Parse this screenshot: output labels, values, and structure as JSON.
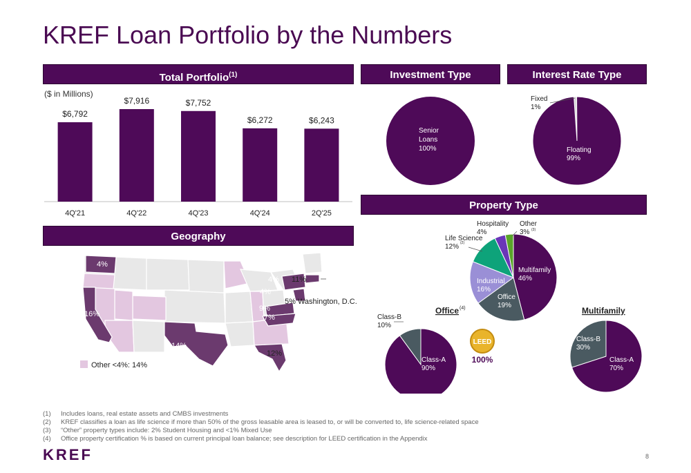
{
  "title": "KREF Loan Portfolio by the Numbers",
  "headers": {
    "total_portfolio": "Total Portfolio",
    "total_portfolio_note": "(1)",
    "investment_type": "Investment Type",
    "interest_rate_type": "Interest Rate Type",
    "property_type": "Property Type",
    "geography": "Geography"
  },
  "colors": {
    "purple": "#4e0a58",
    "slate": "#4a5a61",
    "lavender": "#9a8fd6",
    "teal": "#0ea37a",
    "violet": "#6a36b8",
    "green": "#5aa52a",
    "light_pink": "#e3c7e0",
    "dark_map": "#6b3a6e",
    "gold": "#e9b42b"
  },
  "chart_data": [
    {
      "type": "bar",
      "id": "total_portfolio",
      "unit_label": "($ in Millions)",
      "categories": [
        "4Q'21",
        "4Q'22",
        "4Q'23",
        "4Q'24",
        "2Q'25"
      ],
      "values": [
        6792,
        7916,
        7752,
        6272,
        6243
      ],
      "value_labels": [
        "$6,792",
        "$7,916",
        "$7,752",
        "$6,272",
        "$6,243"
      ],
      "ylim": [
        0,
        7916
      ]
    },
    {
      "type": "pie",
      "id": "investment_type",
      "slices": [
        {
          "label": "Senior Loans",
          "value": 100,
          "pct": "100%"
        }
      ]
    },
    {
      "type": "pie",
      "id": "interest_rate_type",
      "slices": [
        {
          "label": "Floating",
          "value": 99,
          "pct": "99%"
        },
        {
          "label": "Fixed",
          "value": 1,
          "pct": "1%"
        }
      ]
    },
    {
      "type": "pie",
      "id": "property_type",
      "slices": [
        {
          "label": "Multifamily",
          "value": 46,
          "pct": "46%",
          "note": ""
        },
        {
          "label": "Office",
          "value": 19,
          "pct": "19%",
          "note": ""
        },
        {
          "label": "Industrial",
          "value": 16,
          "pct": "16%",
          "note": ""
        },
        {
          "label": "Life Science",
          "value": 12,
          "pct": "12%",
          "note": "(2)"
        },
        {
          "label": "Hospitality",
          "value": 4,
          "pct": "4%",
          "note": ""
        },
        {
          "label": "Other",
          "value": 3,
          "pct": "3%",
          "note": "(3)"
        }
      ]
    },
    {
      "type": "pie",
      "id": "office",
      "title": "Office",
      "title_note": "(4)",
      "slices": [
        {
          "label": "Class-A",
          "value": 90,
          "pct": "90%"
        },
        {
          "label": "Class-B",
          "value": 10,
          "pct": "10%"
        }
      ],
      "leed_badge": "LEED",
      "leed_pct": "100%"
    },
    {
      "type": "pie",
      "id": "multifamily",
      "title": "Multifamily",
      "slices": [
        {
          "label": "Class-A",
          "value": 70,
          "pct": "70%"
        },
        {
          "label": "Class-B",
          "value": 30,
          "pct": "30%"
        }
      ]
    }
  ],
  "geography": {
    "labels": {
      "wa": "4%",
      "ca": "16%",
      "tx": "14%",
      "fl": "12%",
      "ny": "4%",
      "ma": "11%",
      "nj": "4%",
      "va": "9%",
      "nc": "7%",
      "dc": "5% Washington, D.C."
    },
    "legend": "Other <4%: 14%"
  },
  "footnotes": [
    {
      "n": "(1)",
      "text": "Includes loans, real estate assets and CMBS investments"
    },
    {
      "n": "(2)",
      "text": "KREF classifies a loan as life science if more than 50% of the gross leasable area is leased to, or will be converted to, life science-related space"
    },
    {
      "n": "(3)",
      "text": "“Other” property types include: 2% Student Housing and <1% Mixed Use"
    },
    {
      "n": "(4)",
      "text": "Office property certification % is based on current principal loan balance; see description for LEED certification in the Appendix"
    }
  ],
  "logo": "KREF",
  "page_number": "8"
}
